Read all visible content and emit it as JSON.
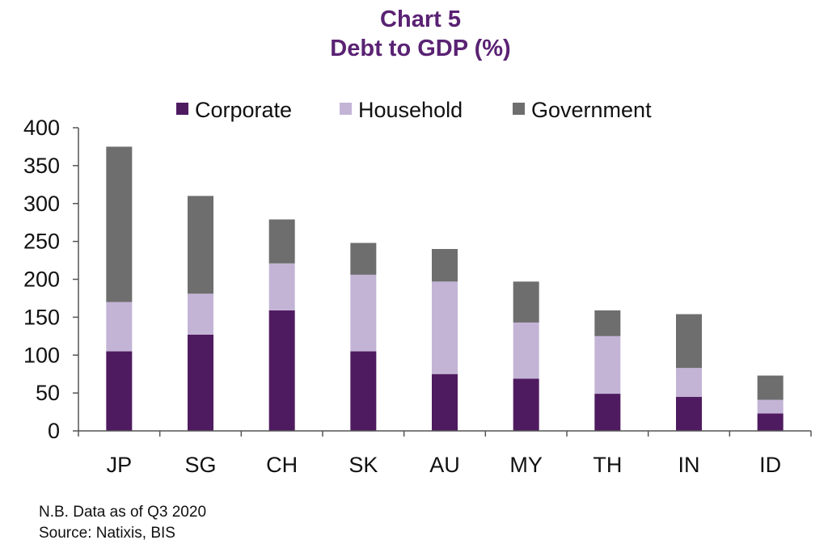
{
  "title": "Chart 5",
  "subtitle": "Debt to GDP (%)",
  "notes": [
    "N.B. Data as of Q3 2020",
    "Source: Natixis, BIS"
  ],
  "chart_data": {
    "type": "bar",
    "stacked": true,
    "categories": [
      "JP",
      "SG",
      "CH",
      "SK",
      "AU",
      "MY",
      "TH",
      "IN",
      "ID"
    ],
    "series": [
      {
        "name": "Corporate",
        "color": "#4f1b60",
        "values": [
          105,
          127,
          159,
          105,
          75,
          69,
          49,
          45,
          23
        ]
      },
      {
        "name": "Household",
        "color": "#c3b4d6",
        "values": [
          65,
          54,
          62,
          101,
          122,
          74,
          76,
          38,
          18
        ]
      },
      {
        "name": "Government",
        "color": "#6e6e6e",
        "values": [
          205,
          129,
          58,
          42,
          43,
          54,
          34,
          71,
          32
        ]
      }
    ],
    "ylim": [
      0,
      400
    ],
    "yticks": [
      0,
      50,
      100,
      150,
      200,
      250,
      300,
      350,
      400
    ],
    "legend_position": "top",
    "grid": false
  }
}
